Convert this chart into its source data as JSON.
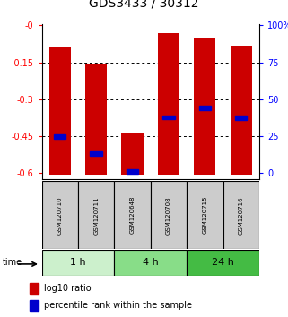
{
  "title": "GDS3433 / 30312",
  "samples": [
    "GSM120710",
    "GSM120711",
    "GSM120648",
    "GSM120708",
    "GSM120715",
    "GSM120716"
  ],
  "bar_tops": [
    -0.09,
    -0.155,
    -0.435,
    -0.03,
    -0.05,
    -0.082
  ],
  "bar_bottom": -0.605,
  "blue_positions": [
    -0.45,
    -0.52,
    -0.593,
    -0.373,
    -0.335,
    -0.375
  ],
  "ylim": [
    -0.625,
    0.005
  ],
  "yticks_left": [
    0.0,
    -0.15,
    -0.3,
    -0.45,
    -0.6
  ],
  "ytick_labels_left": [
    "-0",
    "-0.15",
    "-0.3",
    "-0.45",
    "-0.6"
  ],
  "ytick_labels_right": [
    "100%",
    "75",
    "50",
    "25",
    "0"
  ],
  "time_groups": [
    {
      "label": "1 h",
      "start": 0,
      "end": 2,
      "color": "#ccf0cc"
    },
    {
      "label": "4 h",
      "start": 2,
      "end": 4,
      "color": "#88dd88"
    },
    {
      "label": "24 h",
      "start": 4,
      "end": 6,
      "color": "#44bb44"
    }
  ],
  "bar_color": "#cc0000",
  "blue_color": "#0000cc",
  "bar_width": 0.6,
  "legend_red": "log10 ratio",
  "legend_blue": "percentile rank within the sample",
  "sample_box_color": "#cccccc",
  "title_fontsize": 10,
  "tick_fontsize": 7,
  "sample_fontsize": 5,
  "time_fontsize": 8,
  "legend_fontsize": 7
}
